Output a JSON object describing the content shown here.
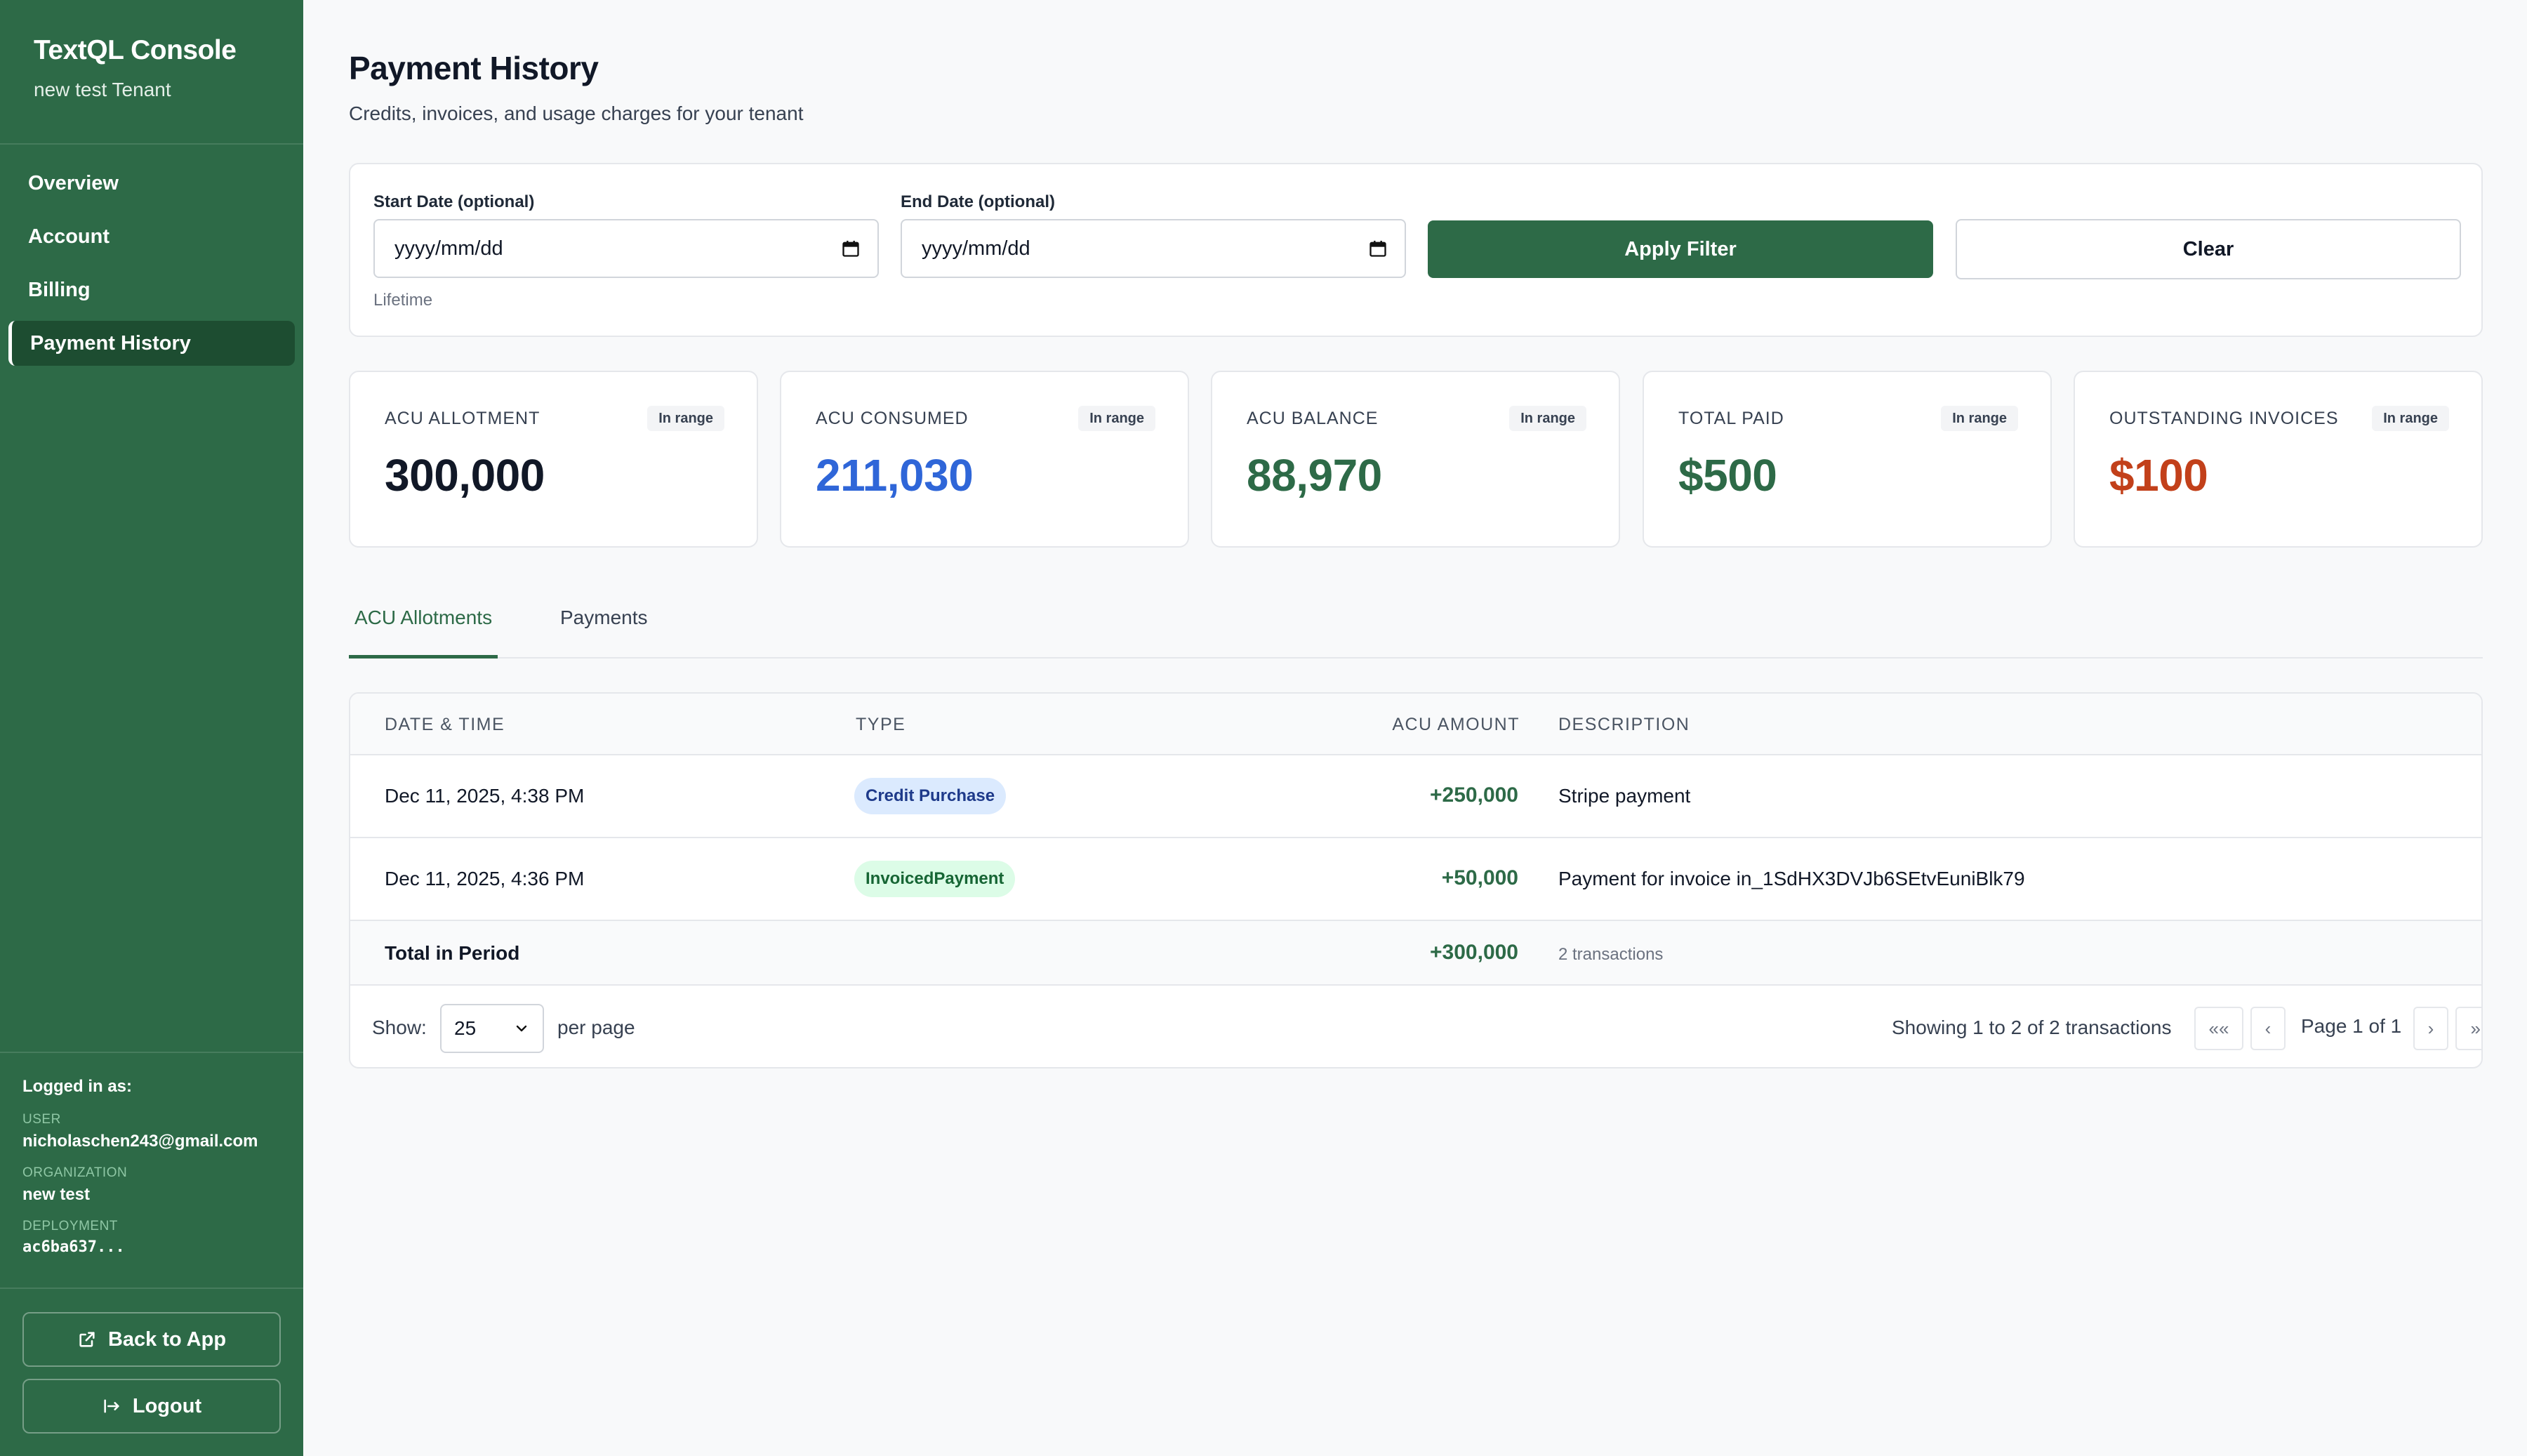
{
  "sidebar": {
    "app_title": "TextQL Console",
    "tenant": "new test Tenant",
    "nav": [
      {
        "label": "Overview"
      },
      {
        "label": "Account"
      },
      {
        "label": "Billing"
      },
      {
        "label": "Payment History",
        "active": true
      }
    ],
    "logged_in": {
      "title": "Logged in as:",
      "user_label": "USER",
      "user": "nicholaschen243@gmail.com",
      "org_label": "ORGANIZATION",
      "org": "new test",
      "deployment_label": "DEPLOYMENT",
      "deployment": "ac6ba637..."
    },
    "back_button": "Back to App",
    "logout_button": "Logout"
  },
  "header": {
    "title": "Payment History",
    "subtitle": "Credits, invoices, and usage charges for your tenant"
  },
  "filter": {
    "start_label": "Start Date (optional)",
    "start_value": "yyyy/mm/dd",
    "end_label": "End Date (optional)",
    "end_value": "yyyy/mm/dd",
    "hint": "Lifetime",
    "apply_label": "Apply Filter",
    "clear_label": "Clear"
  },
  "stats": [
    {
      "label": "ACU ALLOTMENT",
      "badge": "In range",
      "value": "300,000",
      "color": "#111827"
    },
    {
      "label": "ACU CONSUMED",
      "badge": "In range",
      "value": "211,030",
      "color": "#2f66d8"
    },
    {
      "label": "ACU BALANCE",
      "badge": "In range",
      "value": "88,970",
      "color": "#2d6a47"
    },
    {
      "label": "TOTAL PAID",
      "badge": "In range",
      "value": "$500",
      "color": "#2d6a47"
    },
    {
      "label": "OUTSTANDING INVOICES",
      "badge": "In range",
      "value": "$100",
      "color": "#c2401a"
    }
  ],
  "tabs": [
    {
      "label": "ACU Allotments",
      "active": true
    },
    {
      "label": "Payments",
      "active": false
    }
  ],
  "table": {
    "columns": [
      "DATE & TIME",
      "TYPE",
      "ACU AMOUNT",
      "DESCRIPTION"
    ],
    "rows": [
      {
        "date": "Dec 11, 2025, 4:38 PM",
        "type": "Credit Purchase",
        "amount": "+250,000",
        "description": "Stripe payment"
      },
      {
        "date": "Dec 11, 2025, 4:36 PM",
        "type": "InvoicedPayment",
        "amount": "+50,000",
        "description": "Payment for invoice in_1SdHX3DVJb6SEtvEuniBlk79"
      }
    ],
    "total": {
      "label": "Total in Period",
      "amount": "+300,000",
      "count": "2 transactions"
    }
  },
  "pagination": {
    "show_label": "Show:",
    "per_page_value": "25",
    "per_page_label": "per page",
    "summary": "Showing 1 to 2 of 2 transactions",
    "first": "«« ",
    "prev": "‹",
    "page_text": "Page 1 of 1",
    "next": "›",
    "last": "»»"
  },
  "colors": {
    "brand_green": "#2d6a47",
    "sidebar_active": "#1d4d31",
    "consumed_blue": "#2f66d8",
    "outstanding_red": "#c2401a"
  }
}
